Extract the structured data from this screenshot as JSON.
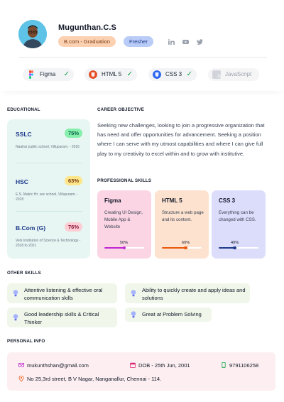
{
  "profile": {
    "name": "Mugunthan.C.S",
    "tags": [
      "B.com - Graduation",
      "Fresher"
    ],
    "social_icons": [
      "linkedin-icon",
      "youtube-icon",
      "twitter-icon"
    ]
  },
  "tools": [
    {
      "label": "Figma",
      "icon": "figma-icon",
      "checked": true,
      "color": "#f24e1e"
    },
    {
      "label": "HTML 5",
      "icon": "html5-icon",
      "checked": true,
      "color": "#e44d26"
    },
    {
      "label": "CSS 3",
      "icon": "css3-icon",
      "checked": true,
      "color": "#2965f1"
    },
    {
      "label": "JavaScript",
      "icon": "javascript-icon",
      "checked": false,
      "color": "#9ca3af"
    }
  ],
  "sections": {
    "educational": "EDUCATIONAL",
    "career_objective": "CAREER OBJECTIVE",
    "professional_skills": "PROFESSIONAL SKILLS",
    "other_skills": "OTHER SKILLS",
    "personal_info": "PERSONAL INFO"
  },
  "education": [
    {
      "title": "SSLC",
      "percent": "75%",
      "school": "Naahar public school, Villupuram. - 2016",
      "badge_color": "#86efac"
    },
    {
      "title": "HSC",
      "percent": "63%",
      "school": "E.S. Matric Hr. sec school, Villupuram. - 2018",
      "badge_color": "#fde68a"
    },
    {
      "title": "B.Com (G)",
      "percent": "76%",
      "school": "Vels Institution of Science & Technology - 2018 to 2021",
      "badge_color": "#fecdd3"
    }
  ],
  "career_objective": "Seeking new challenges, looking to join a progressive organization that has need and offer opportunities for advancement. Seeking a position where I can serve with my utmost capabilities and where I can give full play to my creativity to excel within and to grow with institutive.",
  "professional_skills": [
    {
      "title": "Figma",
      "description": "Creating UI Design, Mobile App & Website",
      "progress_label": "50%",
      "progress": 0.5,
      "bg": "#fbd5e4",
      "accent": "#c026d3"
    },
    {
      "title": "HTML 5",
      "description": "Structure a web page and its content.",
      "progress_label": "60%",
      "progress": 0.6,
      "bg": "#fde2cf",
      "accent": "#ea580c"
    },
    {
      "title": "CSS 3",
      "description": "Everything can be changed with CSS.",
      "progress_label": "40%",
      "progress": 0.4,
      "bg": "#dcdcfb",
      "accent": "#1e3a8a"
    }
  ],
  "other_skills": [
    "Attentive listening & effective oral communication skills",
    "Ability to quickly create and apply ideas and solutions",
    "Good leadership skills & Critical Thinker",
    "Great at Problem Solving"
  ],
  "personal_info": {
    "email": "mukunthshan@gmail.com",
    "dob": "DOB - 25th Jun, 2001",
    "phone": "9791106258",
    "address": "No 25,3rd street, B V Nagar, Nanganallur, Chennai - 114."
  }
}
